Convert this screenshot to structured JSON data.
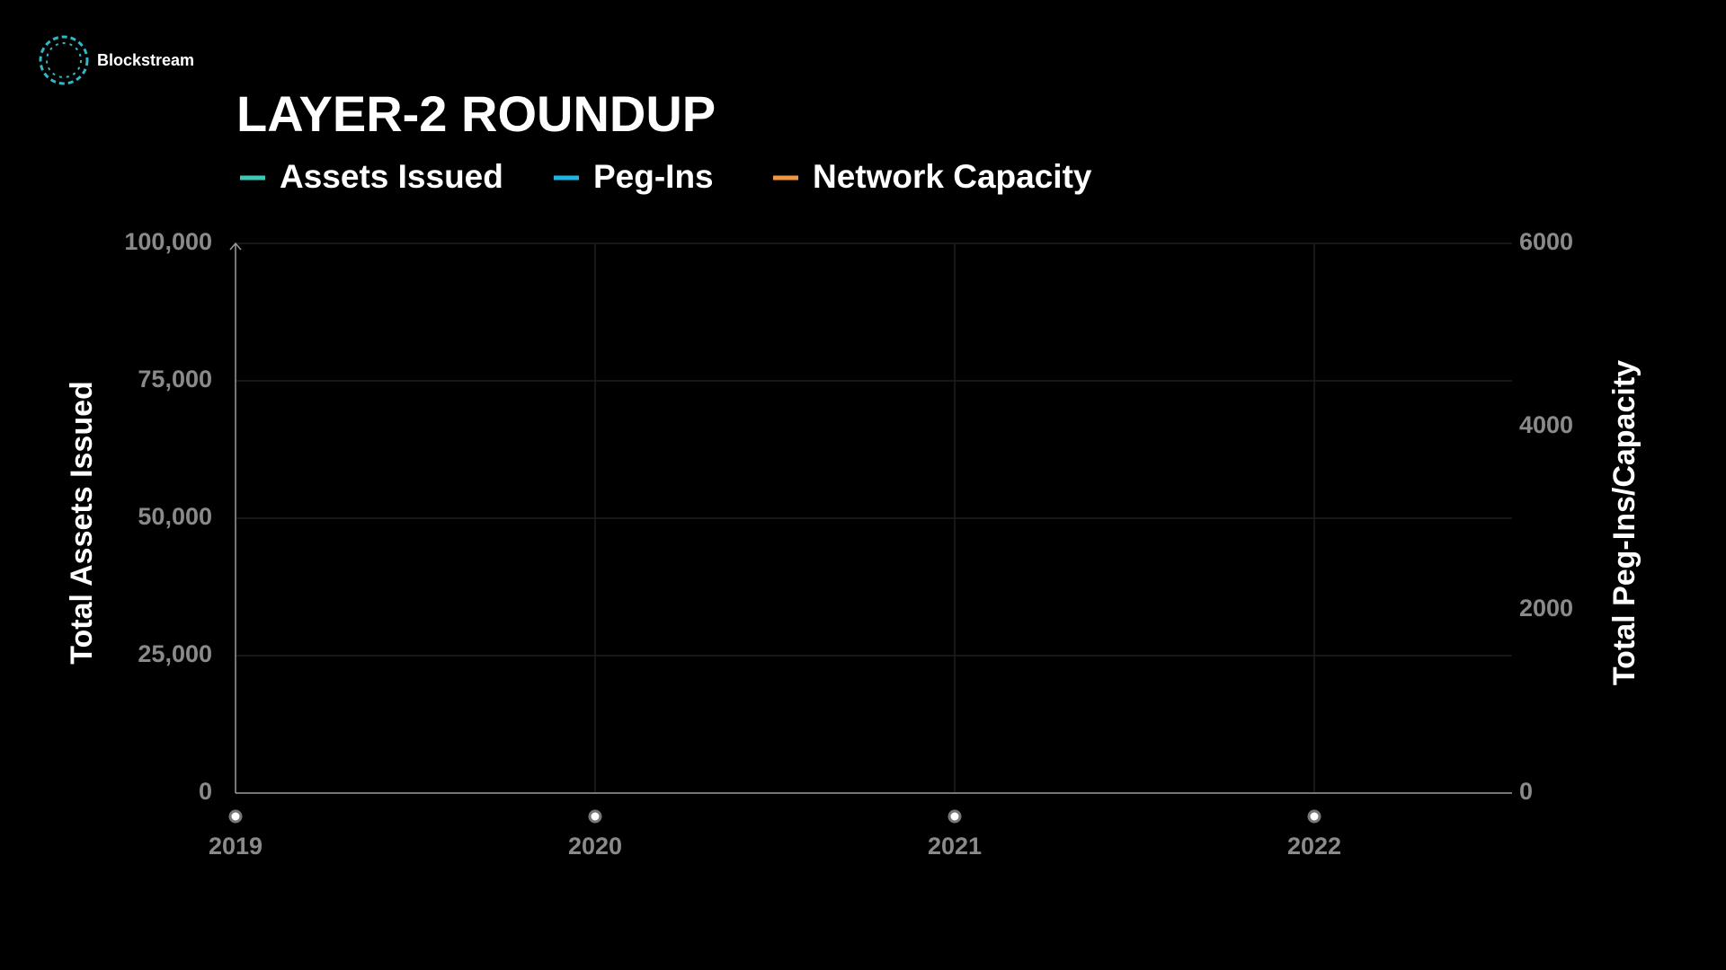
{
  "brand": "Blockstream",
  "chart_data": {
    "type": "line",
    "title": "LAYER-2 ROUNDUP",
    "ylabel": "Total Assets Issued",
    "y2label": "Total Peg-Ins/Capacity",
    "series": [
      {
        "name": "Assets Issued",
        "color": "#3cc8b4",
        "axis": "y"
      },
      {
        "name": "Peg-Ins",
        "color": "#1eb4e6",
        "axis": "y2"
      },
      {
        "name": "Network Capacity",
        "color": "#f0963c",
        "axis": "y2"
      }
    ],
    "xlim": [
      2019,
      2022.55
    ],
    "xticks": [
      2019,
      2020,
      2021,
      2022
    ],
    "ylim": [
      0,
      100000
    ],
    "yticks": [
      0,
      {
        "value": 25000,
        "label": "25,000"
      },
      {
        "value": 50000,
        "label": "50,000"
      },
      {
        "value": 75000,
        "label": "75,000"
      },
      {
        "value": 100000,
        "label": "100,000"
      }
    ],
    "y2lim": [
      0,
      6000
    ],
    "y2ticks": [
      0,
      2000,
      4000,
      6000
    ],
    "grid": true
  }
}
